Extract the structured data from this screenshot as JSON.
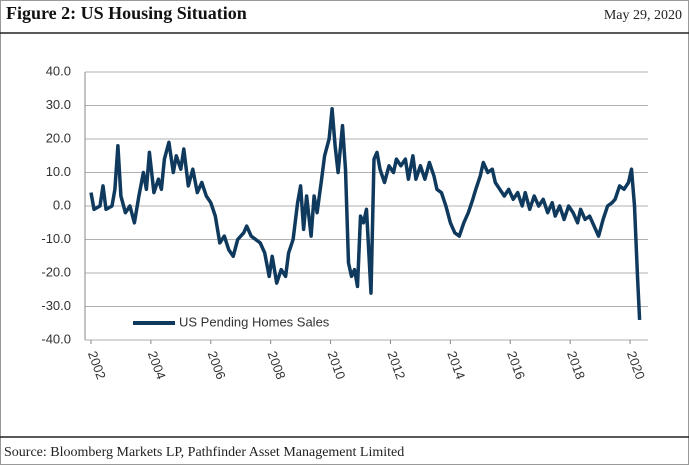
{
  "chart_data": {
    "type": "line",
    "title": "Figure 2: US Housing Situation",
    "date": "May 29, 2020",
    "source": "Source: Bloomberg Markets LP, Pathfinder Asset Management Limited",
    "x": [
      2002.0,
      2002.1,
      2002.3,
      2002.4,
      2002.5,
      2002.7,
      2002.8,
      2002.9,
      2003.0,
      2003.15,
      2003.3,
      2003.45,
      2003.6,
      2003.75,
      2003.85,
      2003.95,
      2004.1,
      2004.25,
      2004.35,
      2004.45,
      2004.6,
      2004.75,
      2004.85,
      2005.0,
      2005.1,
      2005.25,
      2005.4,
      2005.55,
      2005.7,
      2005.85,
      2006.0,
      2006.15,
      2006.3,
      2006.45,
      2006.6,
      2006.75,
      2006.9,
      2007.1,
      2007.2,
      2007.35,
      2007.5,
      2007.65,
      2007.8,
      2007.95,
      2008.05,
      2008.2,
      2008.35,
      2008.5,
      2008.6,
      2008.75,
      2008.9,
      2009.0,
      2009.1,
      2009.2,
      2009.35,
      2009.45,
      2009.55,
      2009.7,
      2009.8,
      2009.95,
      2010.05,
      2010.15,
      2010.25,
      2010.4,
      2010.5,
      2010.6,
      2010.7,
      2010.8,
      2010.9,
      2011.0,
      2011.1,
      2011.2,
      2011.35,
      2011.45,
      2011.55,
      2011.65,
      2011.8,
      2011.95,
      2012.1,
      2012.2,
      2012.35,
      2012.5,
      2012.6,
      2012.75,
      2012.85,
      2013.0,
      2013.15,
      2013.3,
      2013.45,
      2013.55,
      2013.7,
      2013.85,
      2014.0,
      2014.15,
      2014.3,
      2014.45,
      2014.6,
      2014.75,
      2014.85,
      2015.0,
      2015.1,
      2015.25,
      2015.4,
      2015.5,
      2015.65,
      2015.8,
      2015.95,
      2016.1,
      2016.25,
      2016.4,
      2016.5,
      2016.65,
      2016.8,
      2016.95,
      2017.1,
      2017.25,
      2017.4,
      2017.5,
      2017.65,
      2017.8,
      2017.95,
      2018.1,
      2018.25,
      2018.35,
      2018.5,
      2018.65,
      2018.8,
      2018.95,
      2019.1,
      2019.25,
      2019.4,
      2019.5,
      2019.65,
      2019.8,
      2019.95,
      2020.05,
      2020.15,
      2020.25,
      2020.32
    ],
    "series": [
      {
        "name": "US Pending Homes Sales",
        "color": "#0f3a5e",
        "values": [
          4,
          -1,
          0,
          6,
          -1,
          0,
          5,
          18,
          3,
          -2,
          0,
          -5,
          3,
          10,
          5,
          16,
          4,
          8,
          5,
          14,
          19,
          10,
          15,
          11,
          17,
          6,
          11,
          4,
          7,
          3,
          1,
          -3,
          -11,
          -9,
          -13,
          -15,
          -10,
          -8,
          -6,
          -9,
          -10,
          -11,
          -14,
          -21,
          -15,
          -23,
          -19,
          -21,
          -14,
          -10,
          1,
          6,
          -7,
          3,
          -9,
          3,
          -2,
          8,
          15,
          20,
          29,
          18,
          10,
          24,
          11,
          -17,
          -21,
          -19,
          -24,
          -3,
          -5,
          -1,
          -26,
          14,
          16,
          11,
          7,
          12,
          10,
          14,
          12,
          14,
          8,
          15,
          8,
          12,
          8,
          13,
          9,
          5,
          4,
          0,
          -5,
          -8,
          -9,
          -5,
          -2,
          2,
          5,
          9,
          13,
          10,
          11,
          7,
          5,
          3,
          5,
          2,
          4,
          0,
          4,
          -1,
          3,
          0,
          2,
          -2,
          1,
          -3,
          0,
          -4,
          0,
          -2,
          -5,
          -1,
          -4,
          -3,
          -6,
          -9,
          -4,
          0,
          1,
          2,
          6,
          5,
          7,
          11,
          0,
          -21,
          -34
        ]
      }
    ],
    "xlim": [
      2001.8,
      2020.6
    ],
    "xticks": [
      2002,
      2004,
      2006,
      2008,
      2010,
      2012,
      2014,
      2016,
      2018,
      2020
    ],
    "ylim": [
      -40,
      40
    ],
    "yticks": [
      {
        "value": -40,
        "label": "-40.0"
      },
      {
        "value": -30,
        "label": "-30.0"
      },
      {
        "value": -20,
        "label": "-20.0"
      },
      {
        "value": -10,
        "label": "-10.0"
      },
      {
        "value": 0,
        "label": "0.0"
      },
      {
        "value": 10,
        "label": "10.0"
      },
      {
        "value": 20,
        "label": "20.0"
      },
      {
        "value": 30,
        "label": "30.0"
      },
      {
        "value": 40,
        "label": "40.0"
      }
    ],
    "grid": true,
    "legend": "lower left"
  }
}
